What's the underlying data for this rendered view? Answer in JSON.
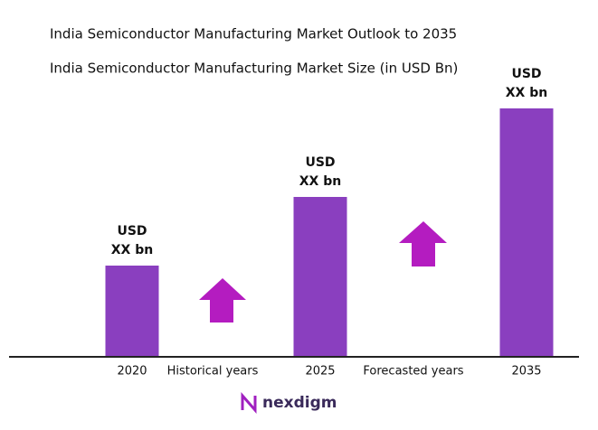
{
  "chart_data": {
    "type": "bar",
    "title": "India Semiconductor Manufacturing Market Outlook to 2035",
    "subtitle": "India Semiconductor Manufacturing Market Size (in USD Bn)",
    "categories": [
      "2020",
      "2025",
      "2035"
    ],
    "values": [
      100,
      176,
      274
    ],
    "value_labels": [
      [
        "USD",
        "XX bn"
      ],
      [
        "USD",
        "XX bn"
      ],
      [
        "USD",
        "XX bn"
      ]
    ],
    "color": "#8a3fbf",
    "annotations": [
      "Historical years",
      "Forecasted years"
    ],
    "logo": "nexdigm"
  }
}
